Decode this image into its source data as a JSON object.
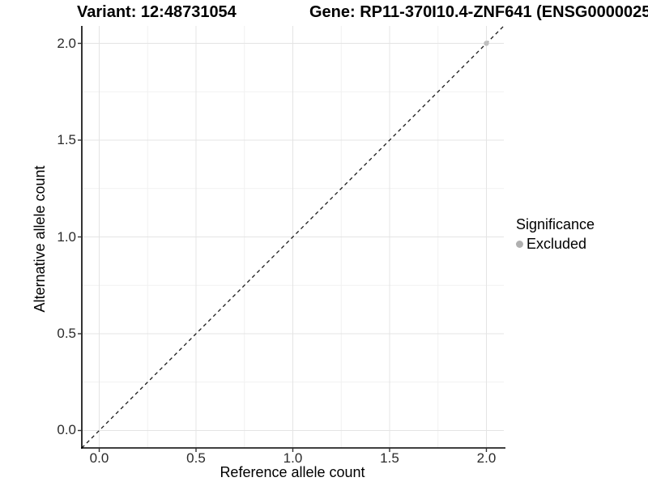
{
  "chart_data": {
    "type": "scatter",
    "titles": {
      "variant": "Variant: 12:48731054",
      "gene": "Gene: RP11-370I10.4-ZNF641 (ENSG0000025"
    },
    "xlabel": "Reference allele count",
    "ylabel": "Alternative allele count",
    "xlim": [
      -0.09,
      2.09
    ],
    "ylim": [
      -0.09,
      2.09
    ],
    "x_ticks": [
      0,
      0.5,
      1,
      1.5,
      2
    ],
    "y_ticks": [
      0,
      0.5,
      1,
      1.5,
      2
    ],
    "x_tick_labels": [
      "0.0",
      "0.5",
      "1.0",
      "1.5",
      "2.0"
    ],
    "y_tick_labels": [
      "0.0",
      "0.5",
      "1.0",
      "1.5",
      "2.0"
    ],
    "x_minor_ticks": [
      0.25,
      0.75,
      1.25,
      1.75
    ],
    "y_minor_ticks": [
      0.25,
      0.75,
      1.25,
      1.75
    ],
    "grid": {
      "on": true,
      "major_color": "#e4e4e4",
      "minor_color": "#f1f1f1"
    },
    "identity_line": {
      "style": "dashed",
      "color": "#1a1a1a",
      "slope": 1,
      "intercept": 0
    },
    "series": [
      {
        "name": "Excluded",
        "color": "#bfbfbf",
        "points": [
          [
            2.0,
            2.0
          ]
        ]
      }
    ],
    "legend": {
      "title": "Significance",
      "position": "right",
      "items": [
        {
          "label": "Excluded",
          "color": "#b0b0b0"
        }
      ]
    },
    "axis_color": "#000000",
    "tick_mark_color": "#333333"
  }
}
